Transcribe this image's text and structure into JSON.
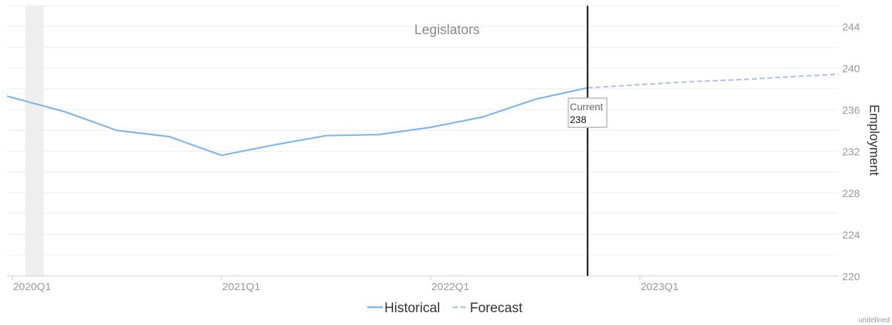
{
  "chart_data": {
    "type": "line",
    "title": "Legislators",
    "ylabel": "Employment",
    "ylim": [
      220,
      246
    ],
    "yticks": [
      220,
      224,
      228,
      232,
      236,
      240,
      244
    ],
    "xticks": [
      "2020Q1",
      "2021Q1",
      "2022Q1",
      "2023Q1"
    ],
    "grid": true,
    "legend_position": "bottom-center",
    "shaded_period": {
      "start": 0.25,
      "end": 0.6
    },
    "current_marker": {
      "x": 11,
      "label": "Current",
      "value": "238"
    },
    "series": [
      {
        "name": "Historical",
        "color": "#7cb5ec",
        "style": "solid",
        "x": [
          -0.1,
          1,
          2,
          3,
          4,
          5,
          6,
          7,
          8,
          9,
          10,
          11
        ],
        "values": [
          237.3,
          235.8,
          234.0,
          233.4,
          231.6,
          232.6,
          233.5,
          233.6,
          234.3,
          235.3,
          237.0,
          238.1
        ]
      },
      {
        "name": "Forecast",
        "color": "#b0c4de",
        "style": "dashed",
        "x": [
          11,
          12,
          13,
          14,
          15,
          15.8
        ],
        "values": [
          238.1,
          238.4,
          238.7,
          238.9,
          239.2,
          239.4
        ]
      }
    ]
  },
  "credit": "undefined"
}
